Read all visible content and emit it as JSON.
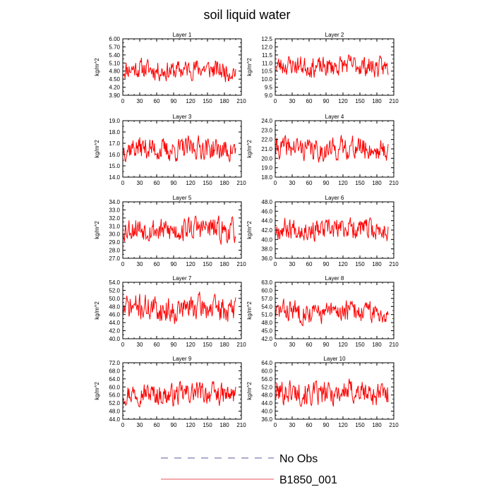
{
  "figure": {
    "title": "soil liquid water"
  },
  "legend": {
    "items": [
      {
        "label": "No Obs",
        "style": "dashed",
        "color": "#5a5a9c"
      },
      {
        "label": "B1850_001",
        "style": "solid",
        "color": "#e8505a"
      }
    ]
  },
  "chart_data": [
    {
      "type": "line",
      "title": "Layer 1",
      "ylabel": "kg/m^2",
      "xlim": [
        0,
        210
      ],
      "ylim": [
        3.9,
        6.0
      ],
      "xticks": [
        0,
        30,
        60,
        90,
        120,
        150,
        180,
        210
      ],
      "ytick_labels": [
        "3.90",
        "4.20",
        "4.50",
        "4.80",
        "5.10",
        "5.40",
        "5.70",
        "6.00"
      ],
      "series": [
        {
          "color": "#ff0000",
          "mean": 4.85,
          "amplitude": 0.33,
          "seed": 11,
          "x_start": 1,
          "x_end": 200
        }
      ]
    },
    {
      "type": "line",
      "title": "Layer 2",
      "ylabel": "kg/m^2",
      "xlim": [
        0,
        210
      ],
      "ylim": [
        9.0,
        12.5
      ],
      "xticks": [
        0,
        30,
        60,
        90,
        120,
        150,
        180,
        210
      ],
      "ytick_labels": [
        "9.0",
        "9.5",
        "10.0",
        "10.5",
        "11.0",
        "11.5",
        "12.0",
        "12.5"
      ],
      "series": [
        {
          "color": "#ff0000",
          "mean": 10.8,
          "amplitude": 0.55,
          "seed": 23,
          "x_start": 1,
          "x_end": 200
        }
      ]
    },
    {
      "type": "line",
      "title": "Layer 3",
      "ylabel": "kg/m^2",
      "xlim": [
        0,
        210
      ],
      "ylim": [
        14.0,
        19.0
      ],
      "xticks": [
        0,
        30,
        60,
        90,
        120,
        150,
        180,
        210
      ],
      "ytick_labels": [
        "14.0",
        "15.0",
        "16.0",
        "17.0",
        "18.0",
        "19.0"
      ],
      "series": [
        {
          "color": "#ff0000",
          "mean": 16.5,
          "amplitude": 0.9,
          "seed": 37,
          "x_start": 1,
          "x_end": 200
        }
      ]
    },
    {
      "type": "line",
      "title": "Layer 4",
      "ylabel": "kg/m^2",
      "xlim": [
        0,
        210
      ],
      "ylim": [
        18.0,
        24.0
      ],
      "xticks": [
        0,
        30,
        60,
        90,
        120,
        150,
        180,
        210
      ],
      "ytick_labels": [
        "18.0",
        "19.0",
        "20.0",
        "21.0",
        "22.0",
        "23.0",
        "24.0"
      ],
      "series": [
        {
          "color": "#ff0000",
          "mean": 21.0,
          "amplitude": 1.05,
          "seed": 41,
          "x_start": 1,
          "x_end": 200
        }
      ]
    },
    {
      "type": "line",
      "title": "Layer 5",
      "ylabel": "kg/m^2",
      "xlim": [
        0,
        210
      ],
      "ylim": [
        27.0,
        34.0
      ],
      "xticks": [
        0,
        30,
        60,
        90,
        120,
        150,
        180,
        210
      ],
      "ytick_labels": [
        "27.0",
        "28.0",
        "29.0",
        "30.0",
        "31.0",
        "32.0",
        "33.0",
        "34.0"
      ],
      "series": [
        {
          "color": "#ff0000",
          "mean": 30.6,
          "amplitude": 1.35,
          "seed": 53,
          "x_start": 1,
          "x_end": 200
        }
      ]
    },
    {
      "type": "line",
      "title": "Layer 6",
      "ylabel": "kg/m^2",
      "xlim": [
        0,
        210
      ],
      "ylim": [
        36.0,
        48.0
      ],
      "xticks": [
        0,
        30,
        60,
        90,
        120,
        150,
        180,
        210
      ],
      "ytick_labels": [
        "36.0",
        "38.0",
        "40.0",
        "42.0",
        "44.0",
        "46.0",
        "48.0"
      ],
      "series": [
        {
          "color": "#ff0000",
          "mean": 42.2,
          "amplitude": 2.0,
          "seed": 67,
          "x_start": 1,
          "x_end": 200
        }
      ]
    },
    {
      "type": "line",
      "title": "Layer 7",
      "ylabel": "kg/m^2",
      "xlim": [
        0,
        210
      ],
      "ylim": [
        40.0,
        54.0
      ],
      "xticks": [
        0,
        30,
        60,
        90,
        120,
        150,
        180,
        210
      ],
      "ytick_labels": [
        "40.0",
        "42.0",
        "44.0",
        "46.0",
        "48.0",
        "50.0",
        "52.0",
        "54.0"
      ],
      "series": [
        {
          "color": "#ff0000",
          "mean": 47.5,
          "amplitude": 2.8,
          "seed": 71,
          "x_start": 1,
          "x_end": 200
        }
      ]
    },
    {
      "type": "line",
      "title": "Layer 8",
      "ylabel": "kg/m^2",
      "xlim": [
        0,
        210
      ],
      "ylim": [
        42.0,
        63.0
      ],
      "xticks": [
        0,
        30,
        60,
        90,
        120,
        150,
        180,
        210
      ],
      "ytick_labels": [
        "42.0",
        "45.0",
        "48.0",
        "51.0",
        "54.0",
        "57.0",
        "60.0",
        "63.0"
      ],
      "series": [
        {
          "color": "#ff0000",
          "mean": 52.0,
          "amplitude": 3.6,
          "seed": 83,
          "x_start": 1,
          "x_end": 200
        }
      ]
    },
    {
      "type": "line",
      "title": "Layer 9",
      "ylabel": "kg/m^2",
      "xlim": [
        0,
        210
      ],
      "ylim": [
        44.0,
        72.0
      ],
      "xticks": [
        0,
        30,
        60,
        90,
        120,
        150,
        180,
        210
      ],
      "ytick_labels": [
        "44.0",
        "48.0",
        "52.0",
        "56.0",
        "60.0",
        "64.0",
        "68.0",
        "72.0"
      ],
      "series": [
        {
          "color": "#ff0000",
          "mean": 56.5,
          "amplitude": 4.8,
          "seed": 97,
          "x_start": 1,
          "x_end": 200
        }
      ]
    },
    {
      "type": "line",
      "title": "Layer 10",
      "ylabel": "kg/m^2",
      "xlim": [
        0,
        210
      ],
      "ylim": [
        36.0,
        64.0
      ],
      "xticks": [
        0,
        30,
        60,
        90,
        120,
        150,
        180,
        210
      ],
      "ytick_labels": [
        "36.0",
        "40.0",
        "44.0",
        "48.0",
        "52.0",
        "56.0",
        "60.0",
        "64.0"
      ],
      "series": [
        {
          "color": "#ff0000",
          "mean": 49.0,
          "amplitude": 5.5,
          "seed": 101,
          "x_start": 1,
          "x_end": 200
        }
      ]
    }
  ]
}
